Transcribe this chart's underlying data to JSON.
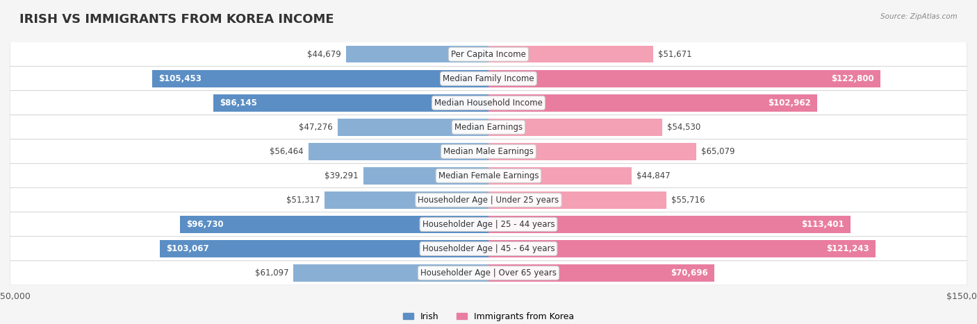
{
  "title": "IRISH VS IMMIGRANTS FROM KOREA INCOME",
  "source": "Source: ZipAtlas.com",
  "categories": [
    "Per Capita Income",
    "Median Family Income",
    "Median Household Income",
    "Median Earnings",
    "Median Male Earnings",
    "Median Female Earnings",
    "Householder Age | Under 25 years",
    "Householder Age | 25 - 44 years",
    "Householder Age | 45 - 64 years",
    "Householder Age | Over 65 years"
  ],
  "irish_values": [
    44679,
    105453,
    86145,
    47276,
    56464,
    39291,
    51317,
    96730,
    103067,
    61097
  ],
  "korea_values": [
    51671,
    122800,
    102962,
    54530,
    65079,
    44847,
    55716,
    113401,
    121243,
    70696
  ],
  "irish_labels": [
    "$44,679",
    "$105,453",
    "$86,145",
    "$47,276",
    "$56,464",
    "$39,291",
    "$51,317",
    "$96,730",
    "$103,067",
    "$61,097"
  ],
  "korea_labels": [
    "$51,671",
    "$122,800",
    "$102,962",
    "$54,530",
    "$65,079",
    "$44,847",
    "$55,716",
    "$113,401",
    "$121,243",
    "$70,696"
  ],
  "irish_color": "#8aafd4",
  "korea_color": "#f4a0b5",
  "irish_color_strong": "#5b8ec4",
  "korea_color_strong": "#e87da0",
  "max_value": 150000,
  "background_color": "#f5f5f5",
  "row_bg_color": "#efefef",
  "title_fontsize": 13,
  "label_fontsize": 8.5,
  "axis_label_fontsize": 9,
  "legend_fontsize": 9
}
